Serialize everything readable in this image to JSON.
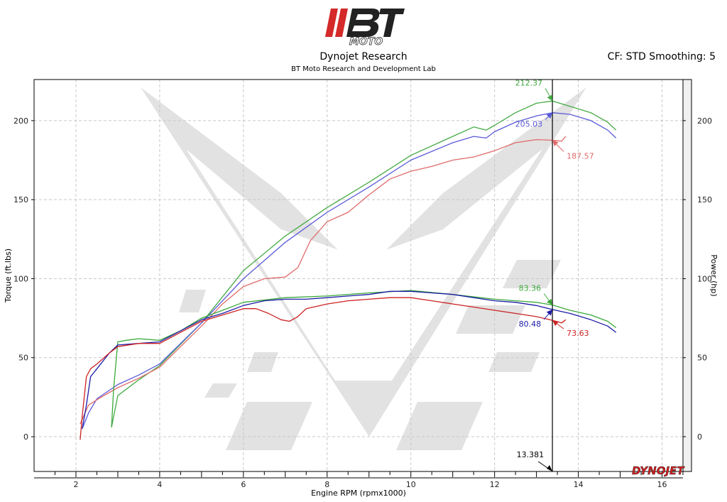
{
  "header": {
    "brand": "BT MOTO",
    "title": "Dynojet Research",
    "subtitle": "BT Moto Research and Development Lab",
    "correction": "CF: STD Smoothing: 5"
  },
  "footer_brand": "DYNOJET",
  "colors": {
    "green": "#3aa83a",
    "blue": "#1c1ca6",
    "red": "#cc2222",
    "green_power": "#44aa44",
    "blue_power": "#5a5ad8",
    "red_power": "#e06a6a"
  },
  "chart_data": {
    "type": "line",
    "xlabel": "Engine RPM (rpmx1000)",
    "ylabel_left": "Torque (ft.lbs)",
    "ylabel_right": "Power (hp)",
    "xlim": [
      1,
      16.5
    ],
    "ylim": [
      -22,
      226
    ],
    "x_ticks": [
      "2",
      "4",
      "6",
      "8",
      "10",
      "12",
      "14",
      "16"
    ],
    "y_ticks": [
      "0",
      "50",
      "100",
      "150",
      "200"
    ],
    "grid": true,
    "cursor": {
      "x": 13.381,
      "label": "13.381"
    },
    "value_labels": [
      {
        "text": "212.37",
        "series": "green_power"
      },
      {
        "text": "205.03",
        "series": "blue_power"
      },
      {
        "text": "187.57",
        "series": "red_power"
      },
      {
        "text": "83.36",
        "series": "green_torque"
      },
      {
        "text": "80.48",
        "series": "blue_torque"
      },
      {
        "text": "73.63",
        "series": "red_torque"
      }
    ],
    "series": [
      {
        "id": "green_power",
        "kind": "power",
        "color": "green_power",
        "x": [
          2.85,
          3.0,
          3.5,
          4.0,
          5.0,
          6.0,
          7.0,
          8.0,
          9.0,
          10.0,
          11.0,
          11.5,
          11.8,
          12.0,
          12.5,
          13.0,
          13.38,
          13.8,
          14.3,
          14.7,
          14.9
        ],
        "y": [
          6,
          26,
          36,
          45,
          72,
          105,
          127,
          145,
          161,
          178,
          190,
          196,
          194,
          197,
          205,
          211,
          212.37,
          209,
          205,
          199,
          194
        ]
      },
      {
        "id": "blue_power",
        "kind": "power",
        "color": "blue_power",
        "x": [
          2.15,
          2.3,
          2.5,
          3.0,
          3.5,
          4.0,
          5.0,
          6.0,
          7.0,
          8.0,
          9.0,
          10.0,
          11.0,
          11.5,
          11.8,
          12.0,
          12.5,
          13.0,
          13.38,
          13.8,
          14.3,
          14.7,
          14.9
        ],
        "y": [
          5,
          15,
          24,
          33,
          39,
          46,
          72,
          100,
          123,
          142,
          158,
          175,
          186,
          190,
          189,
          193,
          199,
          203,
          205.03,
          204,
          200,
          194,
          189
        ]
      },
      {
        "id": "red_power",
        "kind": "power",
        "color": "red_power",
        "x": [
          2.1,
          2.3,
          2.6,
          3.0,
          3.5,
          4.0,
          4.5,
          5.0,
          5.5,
          6.0,
          6.5,
          7.0,
          7.3,
          7.6,
          8.0,
          8.5,
          9.0,
          9.5,
          10.0,
          10.5,
          11.0,
          11.5,
          12.0,
          12.5,
          13.0,
          13.38,
          13.6,
          13.7
        ],
        "y": [
          8,
          20,
          25,
          31,
          37,
          44,
          57,
          70,
          84,
          95,
          100,
          101,
          107,
          124,
          136,
          142,
          153,
          163,
          168,
          171,
          175,
          177,
          181,
          186,
          188,
          187.57,
          187,
          190
        ]
      },
      {
        "id": "green_torque",
        "kind": "torque",
        "color": "green",
        "x": [
          2.85,
          2.9,
          3.0,
          3.2,
          3.5,
          4.0,
          4.5,
          5.0,
          5.5,
          6.0,
          7.0,
          8.0,
          9.0,
          10.0,
          11.0,
          12.0,
          12.5,
          13.0,
          13.38,
          13.8,
          14.3,
          14.7,
          14.9
        ],
        "y": [
          6,
          30,
          60,
          61,
          62,
          61,
          67,
          75,
          80,
          85,
          88,
          89,
          91,
          92.5,
          90,
          87,
          86,
          85,
          83.36,
          80,
          77,
          73,
          69
        ]
      },
      {
        "id": "blue_torque",
        "kind": "torque",
        "color": "blue",
        "x": [
          2.15,
          2.25,
          2.35,
          2.5,
          2.8,
          3.0,
          3.5,
          4.0,
          4.5,
          5.0,
          5.5,
          6.0,
          6.5,
          7.0,
          7.5,
          8.0,
          8.5,
          9.0,
          9.5,
          10.0,
          10.5,
          11.0,
          11.5,
          12.0,
          12.5,
          13.0,
          13.38,
          13.8,
          14.3,
          14.7,
          14.9
        ],
        "y": [
          5,
          20,
          38,
          43,
          53,
          58,
          59,
          60,
          67,
          74,
          78,
          83,
          86,
          87,
          87,
          88,
          89,
          90,
          92,
          92,
          91,
          90,
          88,
          86,
          85,
          83,
          80.48,
          78,
          74,
          70,
          66
        ]
      },
      {
        "id": "red_torque",
        "kind": "torque",
        "color": "red",
        "x": [
          2.1,
          2.15,
          2.25,
          2.35,
          2.5,
          2.8,
          3.0,
          3.5,
          4.0,
          4.5,
          5.0,
          5.5,
          6.0,
          6.3,
          6.6,
          6.9,
          7.1,
          7.3,
          7.5,
          8.0,
          8.5,
          9.0,
          9.5,
          10.0,
          10.5,
          11.0,
          11.5,
          12.0,
          12.5,
          13.0,
          13.38,
          13.6,
          13.7
        ],
        "y": [
          -2,
          13,
          38,
          43,
          46,
          53,
          57,
          59,
          59,
          66,
          73,
          77,
          81,
          81,
          78,
          74,
          73,
          76,
          81,
          84,
          86,
          87,
          88,
          88,
          86,
          84,
          82,
          80,
          78,
          76,
          73.63,
          72,
          74
        ]
      }
    ]
  }
}
